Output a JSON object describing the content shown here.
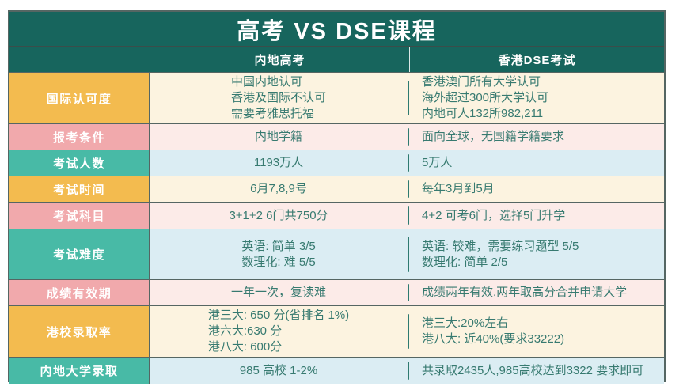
{
  "palette": {
    "teal-dark": "#17655D",
    "label-yellow": "#F3BB4F",
    "label-pink": "#F1A9AC",
    "label-teal": "#48BAA6",
    "bg-cream": "#FCF3E0",
    "bg-pink": "#FCEBE8",
    "bg-blue": "#DBEDF3",
    "text-content": "#377A70",
    "border": "#556663",
    "divider-dash": "#2E7A70"
  },
  "header": {
    "title": "高考 VS DSE课程",
    "col_gaokao": "内地高考",
    "col_dse": "香港DSE考试"
  },
  "rows": [
    {
      "label": "国际认可度",
      "gaokao": [
        "中国内地认可",
        "香港及国际不认可",
        "需要考雅思托福"
      ],
      "dse": [
        "香港澳门所有大学认可",
        "海外超过300所大学认可",
        "内地可人132所982,211"
      ]
    },
    {
      "label": "报考条件",
      "gaokao": [
        "内地学籍"
      ],
      "dse": [
        "面向全球，无国籍学籍要求"
      ]
    },
    {
      "label": "考试人数",
      "gaokao": [
        "1193万人"
      ],
      "dse": [
        "5万人"
      ]
    },
    {
      "label": "考试时间",
      "gaokao": [
        "6月7,8,9号"
      ],
      "dse": [
        "每年3月到5月"
      ]
    },
    {
      "label": "考试科目",
      "gaokao": [
        "3+1+2 6门共750分"
      ],
      "dse": [
        "4+2 可考6门，选择5门升学"
      ]
    },
    {
      "label": "考试难度",
      "gaokao": [
        "英语: 简单 3/5",
        "数理化: 难 5/5"
      ],
      "dse": [
        "英语: 较难，需要练习题型 5/5",
        "数理化: 简单 2/5"
      ]
    },
    {
      "label": "成绩有效期",
      "gaokao": [
        "一年一次，复读难"
      ],
      "dse": [
        "成绩两年有效,两年取高分合并申请大学"
      ]
    },
    {
      "label": "港校录取率",
      "gaokao": [
        "港三大: 650 分(省排名 1%)",
        "港六大:630 分",
        "港八大: 600分"
      ],
      "dse": [
        "港三大:20%左右",
        "港八大: 近40%(要求33222)"
      ]
    },
    {
      "label": "内地大学录取",
      "gaokao": [
        "985 高校 1-2%"
      ],
      "dse": [
        "共录取2435人,985高校达到3322 要求即可"
      ]
    }
  ]
}
